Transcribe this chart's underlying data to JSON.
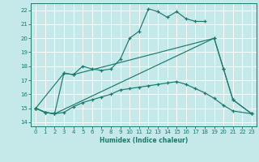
{
  "xlabel": "Humidex (Indice chaleur)",
  "xlim": [
    -0.5,
    23.5
  ],
  "ylim": [
    13.7,
    22.5
  ],
  "xticks": [
    0,
    1,
    2,
    3,
    4,
    5,
    6,
    7,
    8,
    9,
    10,
    11,
    12,
    13,
    14,
    15,
    16,
    17,
    18,
    19,
    20,
    21,
    22,
    23
  ],
  "yticks": [
    14,
    15,
    16,
    17,
    18,
    19,
    20,
    21,
    22
  ],
  "background_color": "#c5e8e8",
  "grid_color": "#ffffff",
  "line_color": "#1a7a6e",
  "line1_x": [
    0,
    1,
    2,
    3,
    4,
    5,
    6,
    7,
    8,
    9,
    10,
    11,
    12,
    13,
    14,
    15,
    16,
    17,
    18
  ],
  "line1_y": [
    15.0,
    14.7,
    14.6,
    17.5,
    17.4,
    18.0,
    17.8,
    17.7,
    17.8,
    18.5,
    20.0,
    20.5,
    22.1,
    21.9,
    21.5,
    21.9,
    21.4,
    21.2,
    21.2
  ],
  "line2_x": [
    0,
    3,
    4,
    19,
    20,
    21,
    23
  ],
  "line2_y": [
    15.0,
    17.5,
    17.4,
    20.0,
    17.8,
    15.6,
    14.6
  ],
  "line3_x": [
    0,
    1,
    2,
    19,
    20,
    21,
    23
  ],
  "line3_y": [
    15.0,
    14.7,
    14.6,
    20.0,
    17.8,
    15.6,
    14.6
  ],
  "line4_x": [
    0,
    1,
    2,
    3,
    4,
    5,
    6,
    7,
    8,
    9,
    10,
    11,
    12,
    13,
    14,
    15,
    16,
    17,
    18,
    19,
    20,
    21,
    23
  ],
  "line4_y": [
    15.0,
    14.7,
    14.6,
    14.7,
    15.1,
    15.4,
    15.6,
    15.8,
    16.0,
    16.3,
    16.4,
    16.5,
    16.6,
    16.7,
    16.8,
    16.9,
    16.7,
    16.4,
    16.1,
    15.7,
    15.2,
    14.8,
    14.6
  ]
}
